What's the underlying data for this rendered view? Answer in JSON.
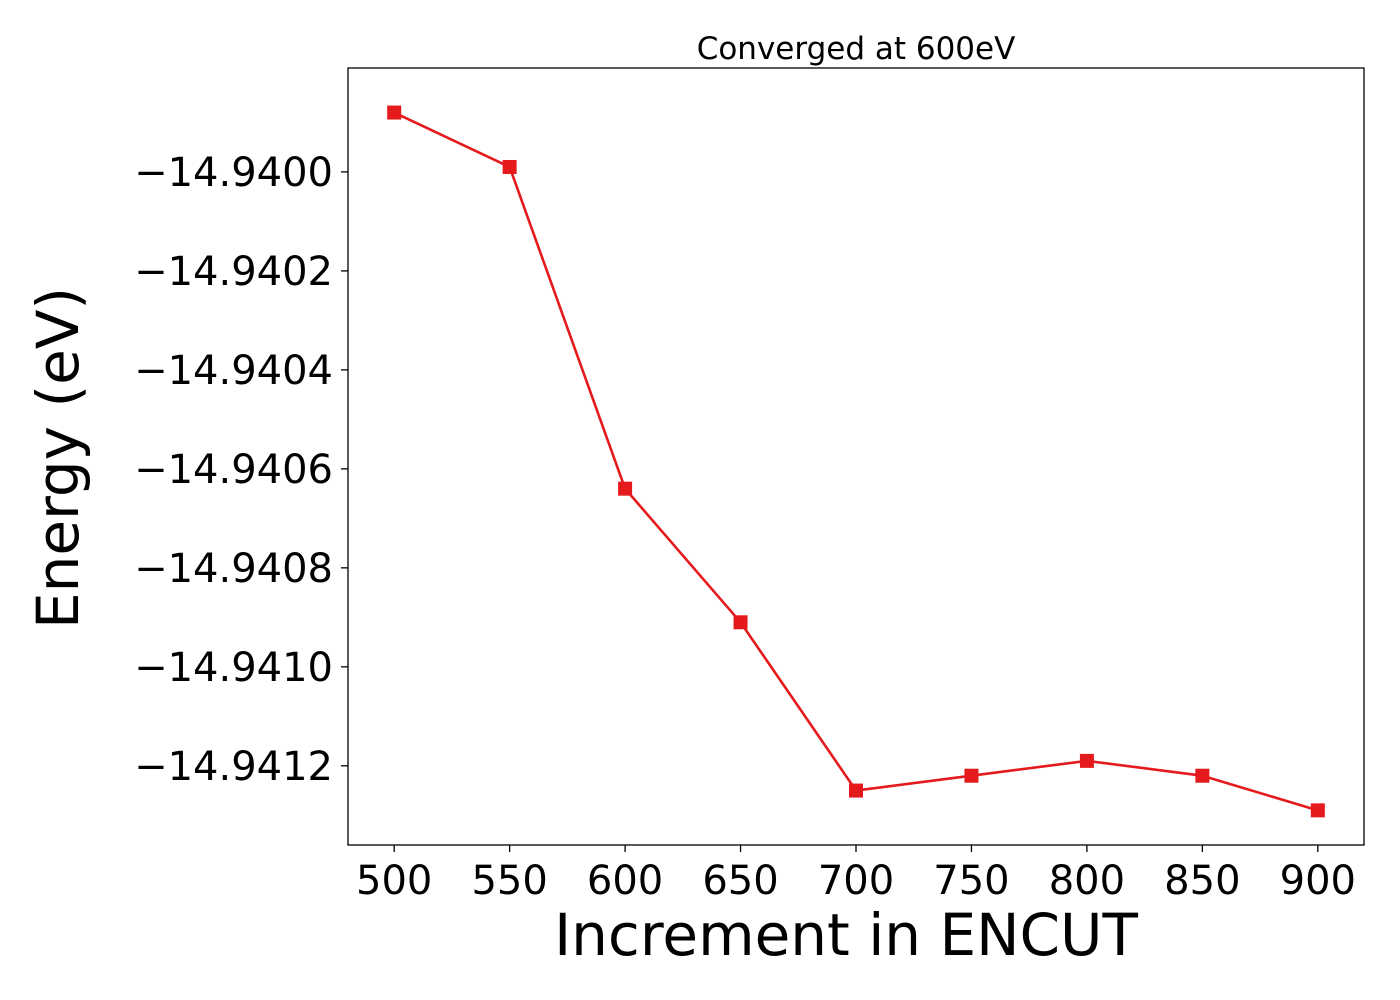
{
  "chart_data": {
    "type": "line",
    "title": "Converged at 600eV",
    "xlabel": "Increment in ENCUT",
    "ylabel": "Energy (eV)",
    "x_ticks": [
      "500",
      "550",
      "600",
      "650",
      "700",
      "750",
      "800",
      "850",
      "900"
    ],
    "y_ticks": [
      "−14.9400",
      "−14.9402",
      "−14.9404",
      "−14.9406",
      "−14.9408",
      "−14.9410",
      "−14.9412"
    ],
    "xlim": [
      480,
      920
    ],
    "ylim": [
      -14.94136,
      -14.93979
    ],
    "grid": false,
    "series": [
      {
        "color": "#e41a1c",
        "marker": "square",
        "x": [
          500,
          550,
          600,
          650,
          700,
          750,
          800,
          850,
          900
        ],
        "y": [
          -14.93988,
          -14.93999,
          -14.94064,
          -14.94091,
          -14.94125,
          -14.94122,
          -14.94119,
          -14.94122,
          -14.94129
        ]
      }
    ]
  }
}
